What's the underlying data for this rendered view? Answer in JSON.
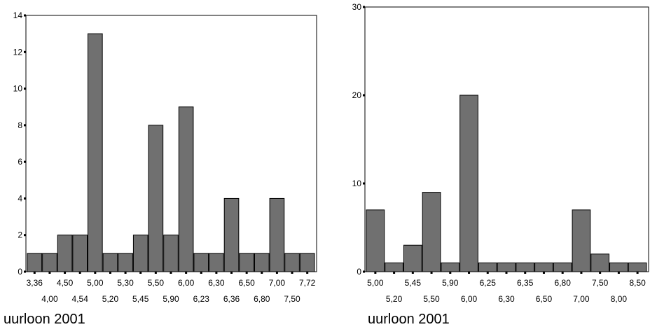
{
  "chart_data": [
    {
      "type": "bar",
      "title": "",
      "xlabel": "uurloon 2001",
      "ylabel": "",
      "ylim": [
        0,
        14
      ],
      "yticks": [
        0,
        2,
        4,
        6,
        8,
        10,
        12,
        14
      ],
      "ytick_labels": [
        "0",
        "2",
        "4",
        "6",
        "8",
        "10",
        "12",
        "14"
      ],
      "categories": [
        "3,36",
        "4,00",
        "4,50",
        "4,54",
        "5,00",
        "5,20",
        "5,30",
        "5,45",
        "5,50",
        "5,90",
        "6,00",
        "6,23",
        "6,30",
        "6,36",
        "6,50",
        "6,80",
        "7,00",
        "7,50",
        "7,72"
      ],
      "values": [
        1,
        1,
        2,
        2,
        13,
        1,
        1,
        2,
        8,
        2,
        9,
        1,
        1,
        4,
        1,
        1,
        4,
        1,
        1
      ],
      "grid": false,
      "legend": "none"
    },
    {
      "type": "bar",
      "title": "",
      "xlabel": "uurloon 2001",
      "ylabel": "",
      "ylim": [
        0,
        30
      ],
      "yticks": [
        0,
        10,
        20,
        30
      ],
      "ytick_labels": [
        "0",
        "10",
        "20",
        "30"
      ],
      "categories": [
        "5,00",
        "5,20",
        "5,45",
        "5,50",
        "5,90",
        "6,00",
        "6,25",
        "6,30",
        "6,35",
        "6,50",
        "6,80",
        "7,00",
        "7,50",
        "8,00",
        "8,50"
      ],
      "values": [
        7,
        1,
        3,
        9,
        1,
        20,
        1,
        1,
        1,
        1,
        1,
        7,
        2,
        1,
        1
      ],
      "grid": false,
      "legend": "none"
    }
  ]
}
